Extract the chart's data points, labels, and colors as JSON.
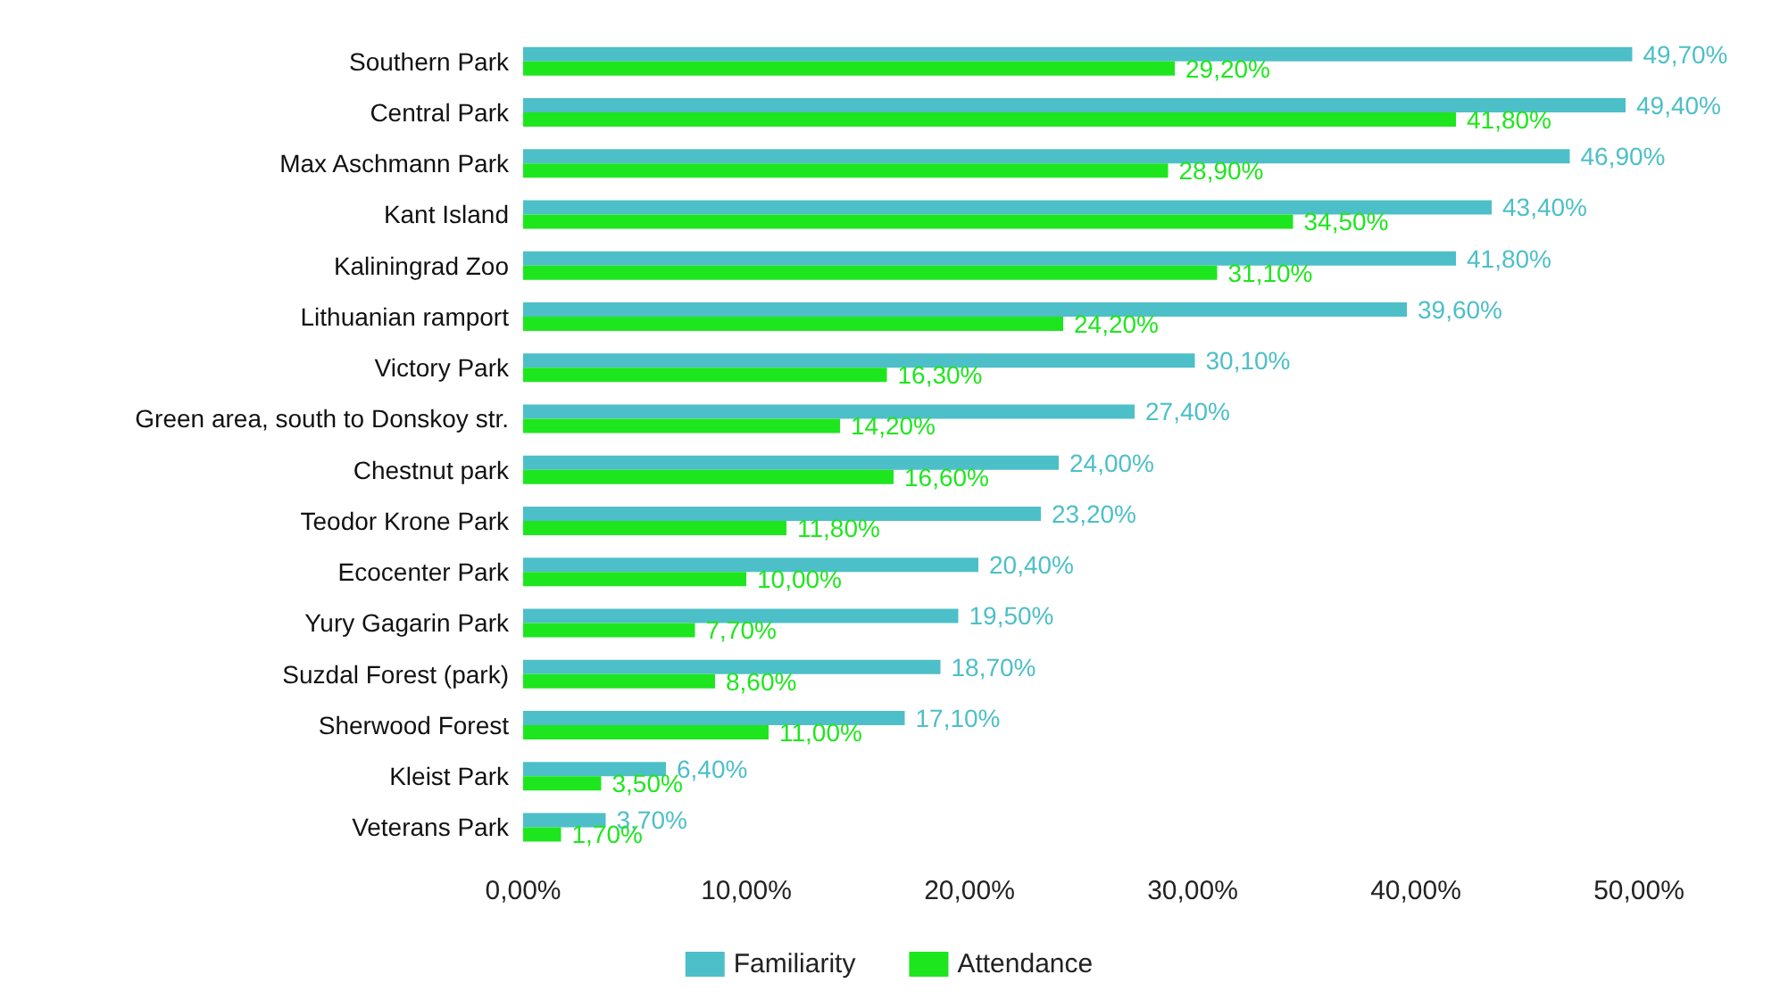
{
  "chart_data": {
    "type": "bar",
    "orientation": "horizontal",
    "categories": [
      "Southern Park",
      "Central Park",
      "Max Aschmann Park",
      "Kant Island",
      "Kaliningrad Zoo",
      "Lithuanian ramport",
      "Victory Park",
      "Green area, south to Donskoy str.",
      "Chestnut park",
      "Teodor Krone Park",
      "Ecocenter Park",
      "Yury Gagarin Park",
      "Suzdal Forest (park)",
      "Sherwood Forest",
      "Kleist Park",
      "Veterans Park"
    ],
    "series": [
      {
        "name": "Familiarity",
        "color": "#4dbfc8",
        "values": [
          49.7,
          49.4,
          46.9,
          43.4,
          41.8,
          39.6,
          30.1,
          27.4,
          24.0,
          23.2,
          20.4,
          19.5,
          18.7,
          17.1,
          6.4,
          3.7
        ],
        "value_labels": [
          "49,70%",
          "49,40%",
          "46,90%",
          "43,40%",
          "41,80%",
          "39,60%",
          "30,10%",
          "27,40%",
          "24,00%",
          "23,20%",
          "20,40%",
          "19,50%",
          "18,70%",
          "17,10%",
          "6,40%",
          "3,70%"
        ]
      },
      {
        "name": "Attendance",
        "color": "#1ee61e",
        "values": [
          29.2,
          41.8,
          28.9,
          34.5,
          31.1,
          24.2,
          16.3,
          14.2,
          16.6,
          11.8,
          10.0,
          7.7,
          8.6,
          11.0,
          3.5,
          1.7
        ],
        "value_labels": [
          "29,20%",
          "41,80%",
          "28,90%",
          "34,50%",
          "31,10%",
          "24,20%",
          "16,30%",
          "14,20%",
          "16,60%",
          "11,80%",
          "10,00%",
          "7,70%",
          "8,60%",
          "11,00%",
          "3,50%",
          "1,70%"
        ]
      }
    ],
    "xlim": [
      0,
      50
    ],
    "xticks": [
      {
        "value": 0,
        "label": "0,00%"
      },
      {
        "value": 10,
        "label": "10,00%"
      },
      {
        "value": 20,
        "label": "20,00%"
      },
      {
        "value": 30,
        "label": "30,00%"
      },
      {
        "value": 40,
        "label": "40,00%"
      },
      {
        "value": 50,
        "label": "50,00%"
      }
    ],
    "grid": false,
    "legend": "bottom"
  }
}
